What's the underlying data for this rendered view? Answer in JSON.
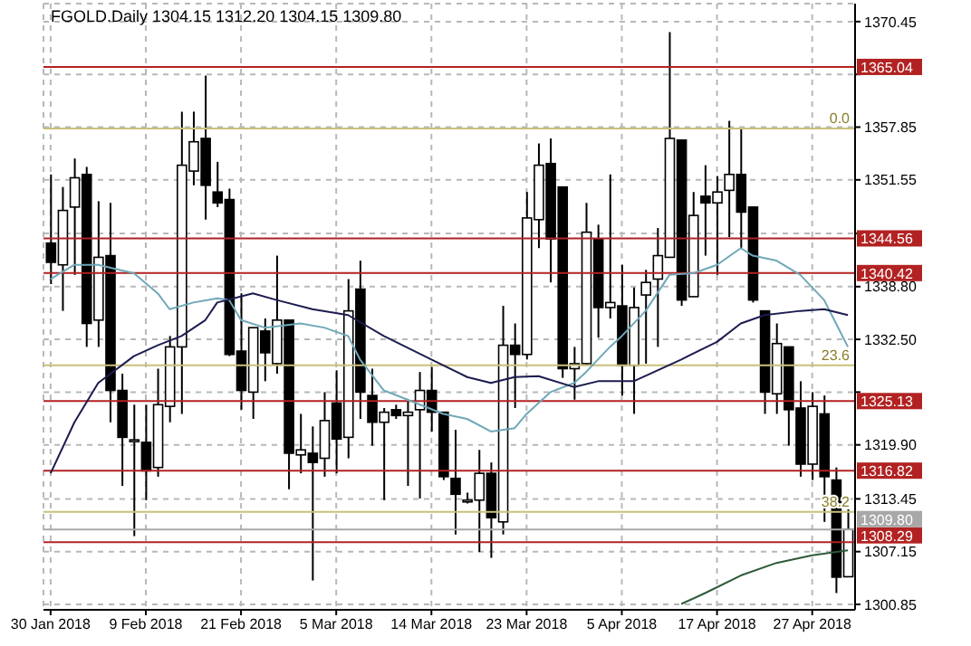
{
  "chart_data": {
    "type": "candlestick",
    "title": "FGOLD.Daily  1304.15 1312.20 1304.15 1309.80",
    "categories": [
      "30 Jan 2018",
      null,
      null,
      null,
      null,
      null,
      null,
      null,
      "9 Feb 2018",
      null,
      null,
      null,
      null,
      null,
      null,
      null,
      "21 Feb 2018",
      null,
      null,
      null,
      null,
      null,
      null,
      null,
      "5 Mar 2018",
      null,
      null,
      null,
      null,
      null,
      null,
      null,
      "14 Mar 2018",
      null,
      null,
      null,
      null,
      null,
      null,
      null,
      "23 Mar 2018",
      null,
      null,
      null,
      null,
      null,
      null,
      null,
      "5 Apr 2018",
      null,
      null,
      null,
      null,
      null,
      null,
      null,
      "17 Apr 2018",
      null,
      null,
      null,
      null,
      null,
      null,
      null,
      "27 Apr 2018",
      null,
      null,
      null
    ],
    "ohlc": [
      [
        1344.0,
        1352.2,
        1339.1,
        1341.7
      ],
      [
        1341.4,
        1350.7,
        1335.9,
        1347.9
      ],
      [
        1348.3,
        1354.1,
        1340.2,
        1351.8
      ],
      [
        1352.2,
        1353.1,
        1331.6,
        1334.4
      ],
      [
        1334.8,
        1349.0,
        1331.6,
        1342.3
      ],
      [
        1342.5,
        1348.8,
        1322.6,
        1326.4
      ],
      [
        1326.4,
        1328.4,
        1315.0,
        1320.8
      ],
      [
        1320.4,
        1324.7,
        1309.0,
        1320.5
      ],
      [
        1320.2,
        1324.7,
        1313.3,
        1316.8
      ],
      [
        1317.2,
        1329.0,
        1316.1,
        1324.7
      ],
      [
        1324.5,
        1332.9,
        1322.6,
        1331.6
      ],
      [
        1331.6,
        1359.7,
        1323.6,
        1353.3
      ],
      [
        1352.6,
        1359.7,
        1350.9,
        1356.1
      ],
      [
        1356.5,
        1364.0,
        1346.8,
        1350.9
      ],
      [
        1350.1,
        1353.7,
        1348.3,
        1348.8
      ],
      [
        1349.2,
        1350.5,
        1330.5,
        1330.7
      ],
      [
        1331.1,
        1338.0,
        1324.1,
        1326.4
      ],
      [
        1326.2,
        1333.9,
        1323.0,
        1333.9
      ],
      [
        1333.5,
        1335.0,
        1327.5,
        1330.9
      ],
      [
        1329.6,
        1342.5,
        1328.4,
        1334.8
      ],
      [
        1334.8,
        1334.8,
        1314.6,
        1318.9
      ],
      [
        1318.7,
        1323.6,
        1316.5,
        1319.3
      ],
      [
        1318.9,
        1322.1,
        1303.7,
        1317.8
      ],
      [
        1318.3,
        1326.2,
        1316.1,
        1322.8
      ],
      [
        1324.9,
        1328.8,
        1316.5,
        1320.6
      ],
      [
        1320.8,
        1339.7,
        1318.3,
        1335.9
      ],
      [
        1338.5,
        1341.9,
        1323.0,
        1326.2
      ],
      [
        1325.8,
        1329.0,
        1319.8,
        1322.6
      ],
      [
        1322.6,
        1324.3,
        1313.3,
        1323.8
      ],
      [
        1324.1,
        1324.7,
        1323.0,
        1323.4
      ],
      [
        1323.4,
        1325.1,
        1315.0,
        1323.8
      ],
      [
        1324.1,
        1328.6,
        1313.5,
        1326.4
      ],
      [
        1326.4,
        1329.2,
        1321.5,
        1323.8
      ],
      [
        1323.8,
        1323.8,
        1315.7,
        1316.1
      ],
      [
        1315.9,
        1321.7,
        1309.2,
        1314.0
      ],
      [
        1313.3,
        1314.2,
        1312.9,
        1313.3
      ],
      [
        1313.3,
        1319.3,
        1307.1,
        1316.5
      ],
      [
        1316.5,
        1317.8,
        1306.4,
        1311.2
      ],
      [
        1310.7,
        1336.5,
        1309.2,
        1331.8
      ],
      [
        1331.8,
        1334.4,
        1324.3,
        1330.7
      ],
      [
        1330.7,
        1350.1,
        1330.1,
        1347.0
      ],
      [
        1346.8,
        1355.9,
        1343.4,
        1353.3
      ],
      [
        1353.5,
        1356.5,
        1339.3,
        1344.5
      ],
      [
        1350.7,
        1350.7,
        1327.9,
        1329.0
      ],
      [
        1329.0,
        1331.6,
        1325.3,
        1329.6
      ],
      [
        1329.6,
        1348.8,
        1329.4,
        1345.3
      ],
      [
        1344.5,
        1346.2,
        1332.7,
        1336.3
      ],
      [
        1336.3,
        1352.2,
        1335.0,
        1336.9
      ],
      [
        1336.5,
        1341.4,
        1325.8,
        1329.4
      ],
      [
        1329.4,
        1338.7,
        1323.6,
        1336.3
      ],
      [
        1337.8,
        1340.8,
        1329.6,
        1339.3
      ],
      [
        1339.7,
        1345.8,
        1331.6,
        1342.5
      ],
      [
        1342.3,
        1369.2,
        1342.3,
        1356.5
      ],
      [
        1356.3,
        1356.3,
        1336.5,
        1337.2
      ],
      [
        1337.6,
        1350.1,
        1337.6,
        1347.3
      ],
      [
        1349.6,
        1353.3,
        1342.5,
        1348.8
      ],
      [
        1348.8,
        1352.0,
        1340.2,
        1350.1
      ],
      [
        1350.3,
        1358.6,
        1344.7,
        1352.2
      ],
      [
        1352.2,
        1357.6,
        1343.4,
        1347.7
      ],
      [
        1348.3,
        1348.3,
        1336.9,
        1337.2
      ],
      [
        1335.9,
        1335.9,
        1323.6,
        1326.2
      ],
      [
        1326.0,
        1334.4,
        1323.6,
        1332.0
      ],
      [
        1331.6,
        1331.6,
        1319.8,
        1324.1
      ],
      [
        1324.3,
        1327.5,
        1316.1,
        1317.6
      ],
      [
        1317.6,
        1326.2,
        1315.7,
        1324.5
      ],
      [
        1323.6,
        1325.8,
        1310.7,
        1316.1
      ],
      [
        1315.7,
        1317.2,
        1302.2,
        1304.1
      ],
      [
        1304.15,
        1312.2,
        1304.15,
        1309.8
      ]
    ],
    "series": [
      {
        "type": "line",
        "color": "#6fa8b8",
        "values": [
          1339.7,
          null,
          1341.4,
          null,
          1341.4,
          null,
          null,
          1340.4,
          null,
          1338.0,
          1336.1,
          null,
          1336.9,
          null,
          1337.4,
          1337.2,
          1334.8,
          null,
          1333.9,
          null,
          null,
          1334.4,
          null,
          1333.9,
          null,
          1332.9,
          1330.1,
          null,
          1326.4,
          null,
          1325.3,
          null,
          null,
          1323.6,
          null,
          1323.0,
          null,
          1321.5,
          null,
          1321.9,
          1323.6,
          null,
          1326.2,
          null,
          1327.3,
          1328.6,
          null,
          1331.6,
          1332.9,
          null,
          1335.9,
          null,
          1340.2,
          null,
          1340.4,
          null,
          1341.4,
          null,
          1343.4,
          1342.5,
          null,
          1341.9,
          null,
          1340.2,
          null,
          1337.2,
          1334.4,
          1331.6
        ]
      },
      {
        "type": "line",
        "color": "#1c1c50",
        "values": [
          1316.5,
          null,
          1322.6,
          null,
          1327.3,
          null,
          null,
          1330.5,
          null,
          1331.8,
          null,
          1332.9,
          null,
          1334.8,
          1336.9,
          null,
          null,
          1338.0,
          null,
          1337.2,
          null,
          null,
          1336.1,
          null,
          null,
          1335.4,
          null,
          null,
          1332.9,
          null,
          null,
          null,
          1330.1,
          null,
          null,
          1328.0,
          null,
          1327.3,
          null,
          1328.0,
          null,
          1328.1,
          null,
          null,
          1326.8,
          null,
          1327.5,
          null,
          null,
          1327.5,
          null,
          null,
          null,
          1330.1,
          null,
          null,
          1332.2,
          null,
          1334.4,
          null,
          1335.4,
          null,
          null,
          1335.9,
          null,
          1336.1,
          null,
          1335.4
        ]
      },
      {
        "type": "line",
        "color": "#2e5a3a",
        "values": [
          null,
          null,
          null,
          null,
          null,
          null,
          null,
          null,
          null,
          null,
          null,
          null,
          null,
          null,
          null,
          null,
          null,
          null,
          null,
          null,
          null,
          null,
          null,
          null,
          null,
          null,
          null,
          null,
          null,
          null,
          null,
          null,
          null,
          null,
          null,
          null,
          null,
          null,
          null,
          null,
          null,
          null,
          null,
          null,
          null,
          null,
          null,
          null,
          null,
          null,
          null,
          null,
          null,
          1300.9,
          null,
          1302.2,
          null,
          null,
          1304.3,
          null,
          null,
          1305.8,
          null,
          null,
          1306.7,
          null,
          null,
          1307.3
        ]
      }
    ],
    "ylim": [
      1300.2,
      1372.6
    ],
    "yticks": [
      1370.45,
      {
        "value": 1364.15,
        "label": null
      },
      1357.85,
      1351.55,
      {
        "value": 1345.15,
        "label": null
      },
      {
        "value": 1338.8,
        "label": "1338.80"
      },
      {
        "value": 1332.5,
        "label": "1332.50"
      },
      {
        "value": 1326.2,
        "label": null
      },
      {
        "value": 1319.9,
        "label": "1319.90"
      },
      1313.45,
      1307.15,
      1300.85
    ],
    "annotations": [
      {
        "text": "0.0",
        "y": 1357.7
      },
      {
        "text": "23.6",
        "y": 1329.4
      },
      {
        "text": "38.2",
        "y": 1311.9
      }
    ],
    "grid": true,
    "ref_lines": [
      {
        "axis": "y",
        "value": 1365.04,
        "label": "1365.04",
        "color": "#b22222"
      },
      {
        "axis": "y",
        "value": 1344.56,
        "label": "1344.56",
        "color": "#b22222"
      },
      {
        "axis": "y",
        "value": 1340.42,
        "label": "1340.42",
        "color": "#b22222"
      },
      {
        "axis": "y",
        "value": 1325.13,
        "label": "1325.13",
        "color": "#b22222"
      },
      {
        "axis": "y",
        "value": 1316.82,
        "label": "1316.82",
        "color": "#b22222"
      },
      {
        "axis": "y",
        "value": 1308.29,
        "label": "1308.29",
        "color": "#b22222"
      },
      {
        "axis": "y",
        "value": 1309.8,
        "label": "1309.80",
        "color": "#a8a8a8"
      },
      {
        "axis": "y",
        "value": 1357.7,
        "color": "#c8c07a"
      },
      {
        "axis": "y",
        "value": 1329.4,
        "color": "#c8c07a"
      },
      {
        "axis": "y",
        "value": 1311.9,
        "color": "#c8c07a"
      }
    ]
  }
}
